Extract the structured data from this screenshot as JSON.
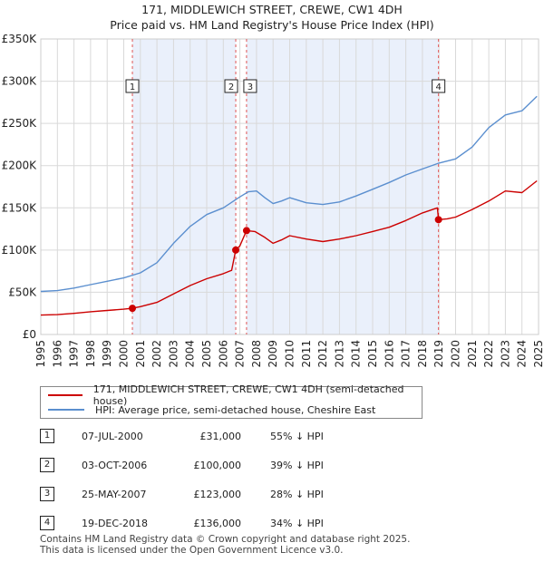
{
  "chart_data": {
    "type": "line",
    "title": "171, MIDDLEWICH STREET, CREWE, CW1 4DH",
    "subtitle": "Price paid vs. HM Land Registry's House Price Index (HPI)",
    "xlim": [
      1995,
      2025
    ],
    "ylim": [
      0,
      350000
    ],
    "x_ticks": [
      "1995",
      "1996",
      "1997",
      "1998",
      "1999",
      "2000",
      "2001",
      "2002",
      "2003",
      "2004",
      "2005",
      "2006",
      "2007",
      "2008",
      "2009",
      "2010",
      "2011",
      "2012",
      "2013",
      "2014",
      "2015",
      "2016",
      "2017",
      "2018",
      "2019",
      "2020",
      "2021",
      "2022",
      "2023",
      "2024",
      "2025"
    ],
    "y_ticks": [
      {
        "value": 0,
        "label": "£0"
      },
      {
        "value": 50000,
        "label": "£50K"
      },
      {
        "value": 100000,
        "label": "£100K"
      },
      {
        "value": 150000,
        "label": "£150K"
      },
      {
        "value": 200000,
        "label": "£200K"
      },
      {
        "value": 250000,
        "label": "£250K"
      },
      {
        "value": 300000,
        "label": "£300K"
      },
      {
        "value": 350000,
        "label": "£350K"
      }
    ],
    "ownership_shading": [
      [
        2000.52,
        2006.75
      ],
      [
        2007.4,
        2018.97
      ]
    ],
    "series": [
      {
        "name": "171, MIDDLEWICH STREET, CREWE, CW1 4DH (semi-detached house)",
        "color": "#cc0000",
        "x": [
          1995,
          1996,
          1997,
          1998,
          1999,
          2000,
          2000.52,
          2001,
          2002,
          2003,
          2004,
          2005,
          2006,
          2006.5,
          2006.75,
          2007,
          2007.4,
          2007.9,
          2008.5,
          2009,
          2009.5,
          2010,
          2011,
          2012,
          2013,
          2014,
          2015,
          2016,
          2017,
          2018,
          2018.9,
          2018.97,
          2019.5,
          2020,
          2021,
          2022,
          2023,
          2024,
          2024.9
        ],
        "y": [
          23000,
          23500,
          25000,
          27000,
          28500,
          30000,
          31000,
          33000,
          38000,
          48000,
          58000,
          66000,
          72000,
          76000,
          100000,
          105000,
          123000,
          122000,
          115000,
          108000,
          112000,
          117000,
          113000,
          110000,
          113000,
          117000,
          122000,
          127000,
          135000,
          144000,
          150000,
          136000,
          137000,
          139000,
          148000,
          158000,
          170000,
          168000,
          182000
        ]
      },
      {
        "name": "HPI: Average price, semi-detached house, Cheshire East",
        "color": "#5b8fcf",
        "x": [
          1995,
          1996,
          1997,
          1998,
          1999,
          2000,
          2001,
          2002,
          2003,
          2004,
          2005,
          2006,
          2007,
          2007.5,
          2008,
          2008.5,
          2009,
          2009.5,
          2010,
          2011,
          2012,
          2013,
          2014,
          2015,
          2016,
          2017,
          2018,
          2019,
          2020,
          2021,
          2022,
          2023,
          2024,
          2024.9
        ],
        "y": [
          51000,
          52000,
          55000,
          59000,
          63000,
          67000,
          73000,
          85000,
          108000,
          128000,
          142000,
          150000,
          163000,
          169000,
          170000,
          162000,
          155000,
          158000,
          162000,
          156000,
          154000,
          157000,
          164000,
          172000,
          180000,
          189000,
          196000,
          203000,
          208000,
          222000,
          245000,
          260000,
          265000,
          282000
        ]
      }
    ],
    "sales": [
      {
        "id": "1",
        "x": 2000.52,
        "y": 31000
      },
      {
        "id": "2",
        "x": 2006.75,
        "y": 100000
      },
      {
        "id": "3",
        "x": 2007.4,
        "y": 123000
      },
      {
        "id": "4",
        "x": 2018.97,
        "y": 136000
      }
    ]
  },
  "legend": {
    "property_label": "171, MIDDLEWICH STREET, CREWE, CW1 4DH (semi-detached house)",
    "hpi_label": "HPI: Average price, semi-detached house, Cheshire East"
  },
  "sales_table": [
    {
      "num": "1",
      "date": "07-JUL-2000",
      "price": "£31,000",
      "hpi": "55% ↓ HPI"
    },
    {
      "num": "2",
      "date": "03-OCT-2006",
      "price": "£100,000",
      "hpi": "39% ↓ HPI"
    },
    {
      "num": "3",
      "date": "25-MAY-2007",
      "price": "£123,000",
      "hpi": "28% ↓ HPI"
    },
    {
      "num": "4",
      "date": "19-DEC-2018",
      "price": "£136,000",
      "hpi": "34% ↓ HPI"
    }
  ],
  "footer": {
    "line1": "Contains HM Land Registry data © Crown copyright and database right 2025.",
    "line2": "This data is licensed under the Open Government Licence v3.0."
  }
}
